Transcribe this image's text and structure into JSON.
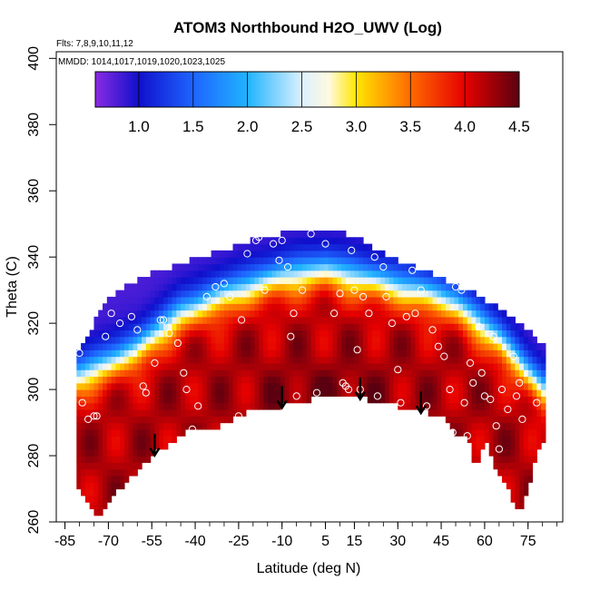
{
  "chart_data": {
    "type": "heatmap",
    "title": "ATOM3 Northbound H2O_UWV (Log)",
    "subtitle_flights": "Flts: 7,8,9,10,11,12",
    "subtitle_dates": "MMDD: 1014,1017,1019,1020,1023,1025",
    "xlabel": "Latitude (deg N)",
    "ylabel": "Theta (C)",
    "xlim": [
      -88,
      87
    ],
    "ylim": [
      260,
      402
    ],
    "x_ticks": [
      -85,
      -70,
      -55,
      -40,
      -25,
      -10,
      5,
      15,
      30,
      45,
      60,
      75
    ],
    "x_minor_step": 5,
    "y_ticks": [
      260,
      280,
      300,
      320,
      340,
      360,
      380,
      400
    ],
    "colorbar": {
      "range": [
        0.6,
        4.5
      ],
      "ticks": [
        1.0,
        1.5,
        2.0,
        2.5,
        3.0,
        3.5,
        4.0,
        4.5
      ],
      "tick_labels": [
        "1.0",
        "1.5",
        "2.0",
        "2.5",
        "3.0",
        "3.5",
        "4.0",
        "4.5"
      ],
      "stops": [
        {
          "v": 0.6,
          "c": "#8a2be2"
        },
        {
          "v": 1.0,
          "c": "#1010cc"
        },
        {
          "v": 1.5,
          "c": "#1e64ff"
        },
        {
          "v": 2.0,
          "c": "#20b4ff"
        },
        {
          "v": 2.5,
          "c": "#dcf0ff"
        },
        {
          "v": 2.75,
          "c": "#fffae0"
        },
        {
          "v": 3.0,
          "c": "#ffe600"
        },
        {
          "v": 3.5,
          "c": "#ff6a00"
        },
        {
          "v": 4.0,
          "c": "#e60000"
        },
        {
          "v": 4.5,
          "c": "#5a0010"
        }
      ]
    },
    "domain_lower_boundary": [
      [
        -80,
        270
      ],
      [
        -74,
        261
      ],
      [
        -65,
        271
      ],
      [
        -55,
        280
      ],
      [
        -42,
        288
      ],
      [
        -36,
        287
      ],
      [
        -25,
        292
      ],
      [
        -20,
        294
      ],
      [
        -10,
        295
      ],
      [
        0,
        297
      ],
      [
        10,
        299
      ],
      [
        20,
        297
      ],
      [
        30,
        295
      ],
      [
        40,
        293
      ],
      [
        45,
        292
      ],
      [
        50,
        287
      ],
      [
        55,
        284
      ],
      [
        57,
        275
      ],
      [
        60,
        285
      ],
      [
        63,
        278
      ],
      [
        67,
        272
      ],
      [
        72,
        262
      ],
      [
        80,
        285
      ]
    ],
    "domain_upper_boundary": [
      [
        -80,
        312
      ],
      [
        -76,
        318
      ],
      [
        -72,
        326
      ],
      [
        -65,
        331
      ],
      [
        -58,
        334
      ],
      [
        -52,
        336
      ],
      [
        -45,
        338
      ],
      [
        -38,
        340
      ],
      [
        -30,
        342
      ],
      [
        -25,
        344
      ],
      [
        -18,
        346
      ],
      [
        -10,
        347
      ],
      [
        -3,
        349
      ],
      [
        5,
        348
      ],
      [
        12,
        347
      ],
      [
        18,
        345
      ],
      [
        25,
        341
      ],
      [
        32,
        338
      ],
      [
        40,
        336
      ],
      [
        48,
        332
      ],
      [
        55,
        330
      ],
      [
        62,
        326
      ],
      [
        68,
        323
      ],
      [
        75,
        318
      ],
      [
        80,
        313
      ]
    ],
    "field_model": {
      "trop_surface": [
        [
          -80,
          304
        ],
        [
          -60,
          312
        ],
        [
          -45,
          323
        ],
        [
          -25,
          330
        ],
        [
          -10,
          334
        ],
        [
          5,
          336
        ],
        [
          20,
          333
        ],
        [
          35,
          330
        ],
        [
          50,
          326
        ],
        [
          65,
          315
        ],
        [
          80,
          300
        ]
      ],
      "low_value": 0.8,
      "high_value": 4.2,
      "transition_width": 14,
      "core_center": [
        5,
        298
      ],
      "core_value": 4.4
    },
    "arrow_latitudes": [
      -54,
      -10,
      17,
      38
    ],
    "observations": [
      [
        -80,
        311
      ],
      [
        -79,
        296
      ],
      [
        -77,
        291
      ],
      [
        -75,
        292
      ],
      [
        -74,
        292
      ],
      [
        -71,
        316
      ],
      [
        -69,
        323
      ],
      [
        -66,
        320
      ],
      [
        -62,
        322
      ],
      [
        -60,
        318
      ],
      [
        -58,
        301
      ],
      [
        -57,
        299
      ],
      [
        -54,
        308
      ],
      [
        -52,
        321
      ],
      [
        -51,
        321
      ],
      [
        -49,
        317
      ],
      [
        -46,
        314
      ],
      [
        -44,
        305
      ],
      [
        -43,
        300
      ],
      [
        -41,
        288
      ],
      [
        -39,
        295
      ],
      [
        -36,
        328
      ],
      [
        -33,
        331
      ],
      [
        -30,
        332
      ],
      [
        -28,
        328
      ],
      [
        -25,
        292
      ],
      [
        -24,
        321
      ],
      [
        -22,
        341
      ],
      [
        -19,
        345
      ],
      [
        -18,
        346
      ],
      [
        -16,
        330
      ],
      [
        -13,
        344
      ],
      [
        -11,
        339
      ],
      [
        -10,
        345
      ],
      [
        -8,
        337
      ],
      [
        -7,
        316
      ],
      [
        -6,
        323
      ],
      [
        -5,
        298
      ],
      [
        -3,
        330
      ],
      [
        0,
        347
      ],
      [
        2,
        299
      ],
      [
        5,
        344
      ],
      [
        8,
        323
      ],
      [
        10,
        329
      ],
      [
        11,
        302
      ],
      [
        12,
        301
      ],
      [
        13,
        300
      ],
      [
        14,
        342
      ],
      [
        15,
        330
      ],
      [
        16,
        312
      ],
      [
        17,
        300
      ],
      [
        18,
        328
      ],
      [
        20,
        323
      ],
      [
        22,
        340
      ],
      [
        23,
        298
      ],
      [
        25,
        337
      ],
      [
        26,
        328
      ],
      [
        28,
        320
      ],
      [
        30,
        306
      ],
      [
        31,
        296
      ],
      [
        33,
        322
      ],
      [
        35,
        336
      ],
      [
        36,
        323
      ],
      [
        38,
        330
      ],
      [
        40,
        295
      ],
      [
        42,
        318
      ],
      [
        44,
        313
      ],
      [
        46,
        310
      ],
      [
        48,
        300
      ],
      [
        49,
        287
      ],
      [
        50,
        331
      ],
      [
        52,
        330
      ],
      [
        53,
        296
      ],
      [
        54,
        286
      ],
      [
        55,
        308
      ],
      [
        56,
        302
      ],
      [
        58,
        319
      ],
      [
        59,
        305
      ],
      [
        60,
        298
      ],
      [
        62,
        297
      ],
      [
        63,
        316
      ],
      [
        64,
        289
      ],
      [
        65,
        282
      ],
      [
        66,
        300
      ],
      [
        68,
        294
      ],
      [
        70,
        310
      ],
      [
        71,
        298
      ],
      [
        72,
        302
      ],
      [
        73,
        291
      ],
      [
        78,
        296
      ]
    ]
  }
}
